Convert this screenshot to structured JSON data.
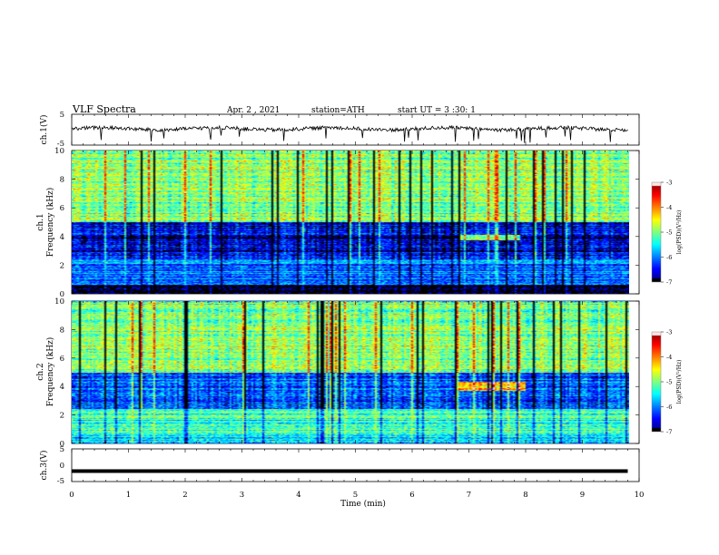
{
  "header": {
    "title": "VLF Spectra",
    "date": "Apr. 2 , 2021",
    "station": "station=ATH",
    "start": "start UT = 3 :30: 1"
  },
  "chart_data": [
    {
      "type": "line",
      "panel": "ch1-voltage",
      "ylabel": "ch.1(V)",
      "ylim": [
        -5,
        5
      ],
      "yticks": [
        "5",
        "-5"
      ],
      "xlim": [
        0,
        10
      ],
      "series": [
        {
          "mean_approx": 0.3,
          "noise_amplitude_approx": 1.2,
          "x_end": 9.8
        }
      ]
    },
    {
      "type": "heatmap",
      "panel": "ch1-spectrogram",
      "ylabel_top": "ch.1",
      "ylabel": "Frequency (kHz)",
      "ylim": [
        0,
        10
      ],
      "yticks": [
        "0",
        "2",
        "4",
        "6",
        "8",
        "10"
      ],
      "xlim": [
        0,
        9.8
      ],
      "colorbar": {
        "label": "log(PSD)(V²/Hz)",
        "range": [
          -7,
          -3
        ],
        "ticks": [
          "-3",
          "-4",
          "-5",
          "-6",
          "-7"
        ]
      },
      "features": [
        {
          "f_range_kHz": [
            0,
            0.6
          ],
          "level": -7.0
        },
        {
          "f_range_kHz": [
            0.6,
            2.4
          ],
          "level": -6.0
        },
        {
          "f_range_kHz": [
            2.4,
            5.0
          ],
          "level": -6.6
        },
        {
          "f_range_kHz": [
            5.0,
            10
          ],
          "level": -5.0
        },
        {
          "time_range_min": [
            6.8,
            7.9
          ],
          "f_range_kHz": [
            3.7,
            4.1
          ],
          "level": -4.8
        }
      ]
    },
    {
      "type": "heatmap",
      "panel": "ch2-spectrogram",
      "ylabel_top": "ch.2",
      "ylabel": "Frequency (kHz)",
      "ylim": [
        0,
        10
      ],
      "yticks": [
        "0",
        "2",
        "4",
        "6",
        "8",
        "10"
      ],
      "xlim": [
        0,
        9.8
      ],
      "colorbar": {
        "label": "log(PSD)(V²/Hz)",
        "range": [
          -7,
          -3
        ],
        "ticks": [
          "-3",
          "-4",
          "-5",
          "-6",
          "-7"
        ]
      },
      "features": [
        {
          "f_range_kHz": [
            0,
            0.6
          ],
          "level": -5.5
        },
        {
          "f_range_kHz": [
            0.6,
            2.4
          ],
          "level": -5.3
        },
        {
          "f_range_kHz": [
            2.4,
            5.0
          ],
          "level": -6.2
        },
        {
          "f_range_kHz": [
            5.0,
            10
          ],
          "level": -5.0
        },
        {
          "time_range_min": [
            6.8,
            8.0
          ],
          "f_range_kHz": [
            3.7,
            4.3
          ],
          "level": -4.3
        }
      ]
    },
    {
      "type": "line",
      "panel": "ch3-voltage",
      "ylabel": "ch.3(V)",
      "ylim": [
        -5,
        5
      ],
      "yticks": [
        "5",
        "0",
        "-5"
      ],
      "xlabel": "Time (min)",
      "xlim": [
        0,
        10
      ],
      "xticks": [
        "0",
        "1",
        "2",
        "3",
        "4",
        "5",
        "6",
        "7",
        "8",
        "9",
        "10"
      ],
      "series": [
        {
          "constant_value_approx": -1.8,
          "x_end": 9.8
        }
      ]
    }
  ]
}
